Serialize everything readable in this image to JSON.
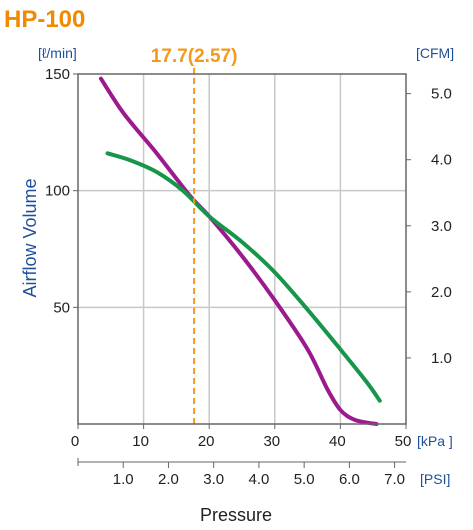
{
  "colors": {
    "title": "#f08a00",
    "marker": "#f39a1e",
    "series_purple": "#9b1a8e",
    "series_green": "#17964a",
    "axis_label": "#1f4f9a",
    "grid": "#c8c8c8",
    "frame": "#666666"
  },
  "chart_data": {
    "type": "line",
    "title": "HP-100",
    "marker_label": "17.7(2.57)",
    "marker_x": 17.7,
    "xlabel": "Pressure",
    "ylabel": "Airflow Volume",
    "x_unit": "[kPa ]",
    "x2_unit": "[PSI]",
    "y_unit": "[ℓ/min]",
    "y2_unit": "[CFM]",
    "xlim": [
      0,
      50
    ],
    "ylim": [
      0,
      150
    ],
    "grid": true,
    "x_ticks": [
      0,
      10,
      20,
      30,
      40,
      50
    ],
    "x_tick_labels": [
      "0",
      "10",
      "20",
      "30",
      "40",
      "50"
    ],
    "x2_ticks": [
      1.0,
      2.0,
      3.0,
      4.0,
      5.0,
      6.0,
      7.0
    ],
    "x2_tick_labels": [
      "1.0",
      "2.0",
      "3.0",
      "4.0",
      "5.0",
      "6.0",
      "7.0"
    ],
    "y_ticks": [
      50,
      100,
      150
    ],
    "y_tick_labels": [
      "50",
      "100",
      "150"
    ],
    "y2_ticks": [
      1.0,
      2.0,
      3.0,
      4.0,
      5.0
    ],
    "y2_tick_labels": [
      "1.0",
      "2.0",
      "3.0",
      "4.0",
      "5.0"
    ],
    "series": [
      {
        "color": "#9b1a8e",
        "x": [
          3.5,
          7,
          12,
          17,
          20,
          25,
          30,
          35,
          38,
          40,
          42,
          44,
          45.5
        ],
        "y": [
          148,
          133,
          116,
          98,
          89,
          72,
          53,
          32,
          15,
          6,
          2,
          0.6,
          0
        ]
      },
      {
        "color": "#17964a",
        "x": [
          4.5,
          8,
          12,
          16,
          20,
          25,
          30,
          35,
          40,
          44,
          46
        ],
        "y": [
          116,
          113,
          108,
          100,
          89,
          78,
          65,
          49,
          32,
          18,
          10
        ]
      }
    ]
  }
}
